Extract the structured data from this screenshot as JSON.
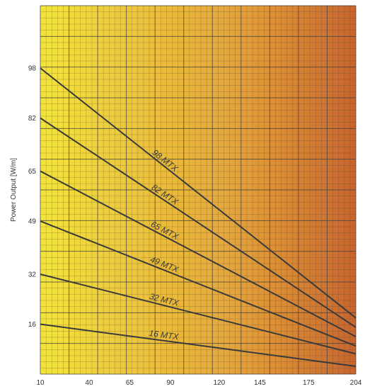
{
  "chart_data": {
    "type": "line",
    "title": "",
    "xlabel": "",
    "ylabel": "Power Output [W/m]",
    "x_ticks": [
      "10",
      "40",
      "65",
      "90",
      "120",
      "145",
      "175",
      "204"
    ],
    "y_ticks": [
      "16",
      "32",
      "49",
      "65",
      "82",
      "98"
    ],
    "xlim": [
      10,
      204
    ],
    "ylim": [
      0,
      118
    ],
    "grid": true,
    "legend": "none",
    "background_gradient": [
      "#f3e43c",
      "#e6a63a",
      "#c9652c"
    ],
    "line_color": "#3a3a3a",
    "grid_color": "#3f3f3f",
    "series": [
      {
        "name": "98 MTX",
        "x": [
          10,
          204
        ],
        "y": [
          98,
          18
        ]
      },
      {
        "name": "82 MTX",
        "x": [
          10,
          204
        ],
        "y": [
          82,
          15
        ]
      },
      {
        "name": "65 MTX",
        "x": [
          10,
          204
        ],
        "y": [
          65,
          12
        ]
      },
      {
        "name": "49 MTX",
        "x": [
          10,
          204
        ],
        "y": [
          49,
          9
        ]
      },
      {
        "name": "32 MTX",
        "x": [
          10,
          204
        ],
        "y": [
          32,
          6.5
        ]
      },
      {
        "name": "16 MTX",
        "x": [
          10,
          204
        ],
        "y": [
          16,
          2.5
        ]
      }
    ]
  }
}
